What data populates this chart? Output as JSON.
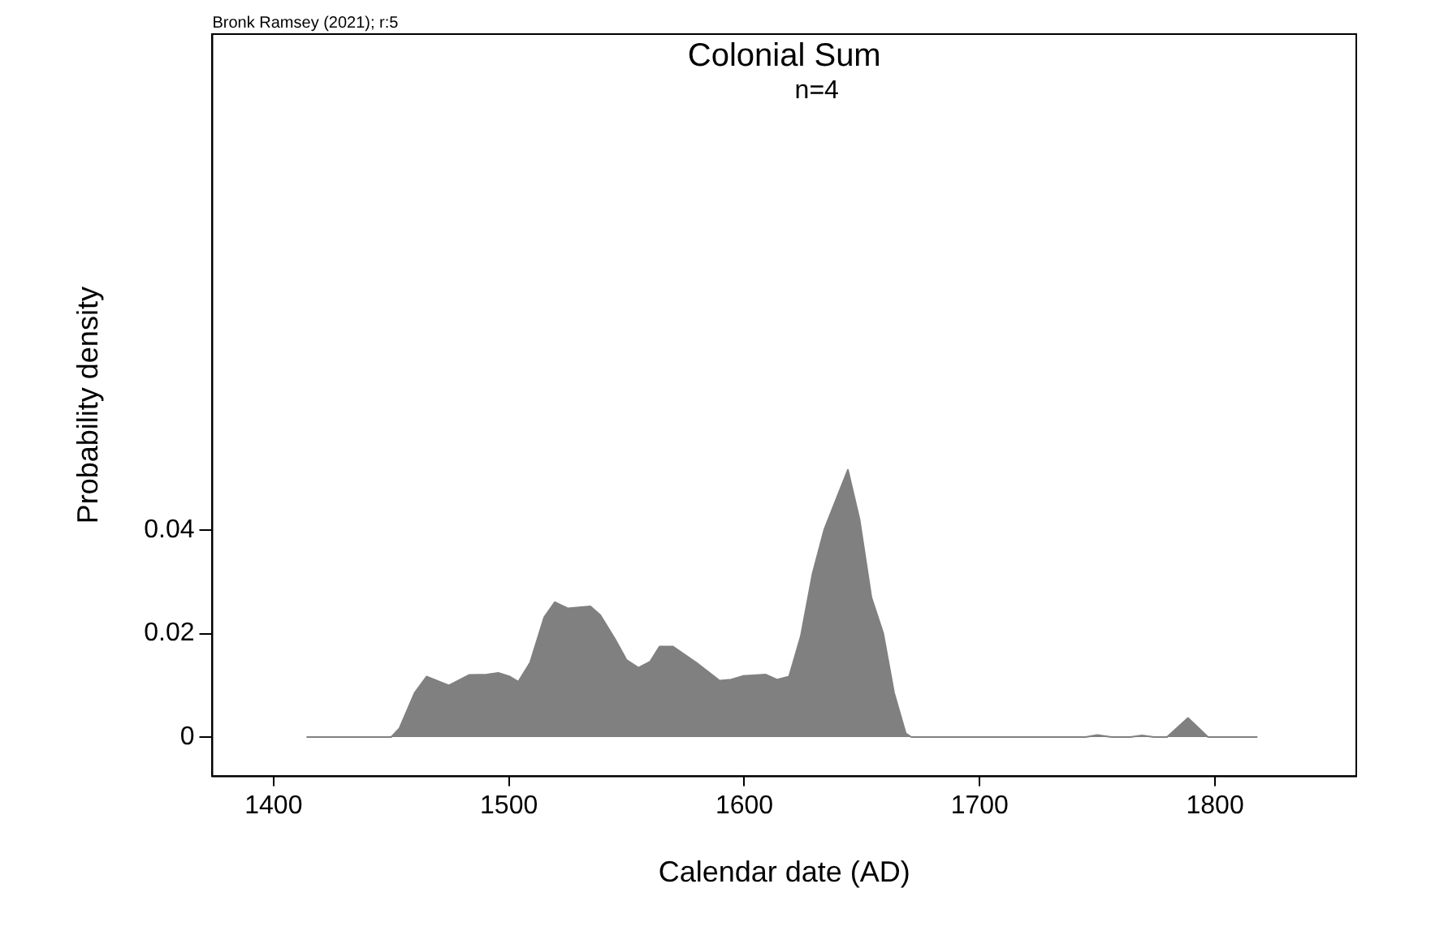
{
  "chart_data": {
    "type": "area",
    "title": "Colonial Sum",
    "subtitle": "n=4",
    "xlabel": "Calendar date (AD)",
    "ylabel": "Probability density",
    "annotations": [
      "Bronk Ramsey (2021); r:5"
    ],
    "xlim": [
      1374,
      1860
    ],
    "xticks": [
      1400,
      1500,
      1600,
      1700,
      1800
    ],
    "ylim": [
      -0.0076,
      0.136
    ],
    "yticks": [
      0,
      0.02,
      0.04
    ],
    "grid": false,
    "legend": false,
    "series": [
      {
        "color": "#808080",
        "x": [
          1414,
          1450,
          1453.5,
          1460,
          1465,
          1474.5,
          1483,
          1490.6,
          1495.5,
          1500.4,
          1504,
          1509,
          1515,
          1519.5,
          1525,
          1534.6,
          1538.8,
          1545,
          1550,
          1555,
          1560,
          1564,
          1569.7,
          1579.6,
          1589.5,
          1594.4,
          1599.3,
          1609,
          1614,
          1619,
          1624,
          1629,
          1634,
          1644,
          1649,
          1654,
          1659,
          1663.6,
          1668.6,
          1671,
          1745,
          1750,
          1756,
          1764,
          1769,
          1774,
          1779.6,
          1788.5,
          1797,
          1818
        ],
        "values": [
          0,
          0,
          0.0017,
          0.0086,
          0.0117,
          0.01,
          0.012,
          0.0121,
          0.0124,
          0.0117,
          0.0107,
          0.0144,
          0.0232,
          0.0261,
          0.0249,
          0.0253,
          0.0236,
          0.019,
          0.0149,
          0.0134,
          0.0146,
          0.0175,
          0.0175,
          0.0144,
          0.0109,
          0.0111,
          0.0118,
          0.0121,
          0.0111,
          0.0117,
          0.0195,
          0.0316,
          0.0402,
          0.0517,
          0.042,
          0.027,
          0.0201,
          0.0086,
          0.0007,
          0,
          0,
          0.0004,
          0,
          0,
          0.0003,
          0,
          0,
          0.0037,
          0,
          0
        ]
      }
    ]
  }
}
